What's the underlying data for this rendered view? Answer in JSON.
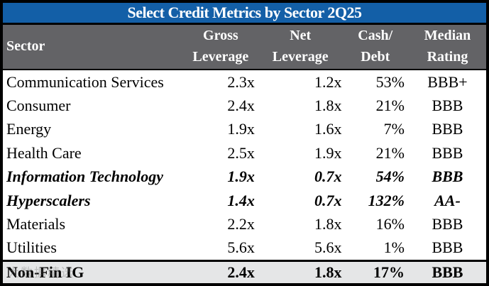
{
  "title": "Select Credit Metrics by Sector 2Q25",
  "columns": {
    "sector": "Sector",
    "gross": [
      "Gross",
      "Leverage"
    ],
    "net": [
      "Net",
      "Leverage"
    ],
    "cash": [
      "Cash/",
      "Debt"
    ],
    "rating": [
      "Median",
      "Rating"
    ]
  },
  "rows": [
    {
      "sector": "Communication Services",
      "gross": "2.3x",
      "net": "1.2x",
      "cash": "53%",
      "rating": "BBB+",
      "emphasis": false
    },
    {
      "sector": "Consumer",
      "gross": "2.4x",
      "net": "1.8x",
      "cash": "21%",
      "rating": "BBB",
      "emphasis": false
    },
    {
      "sector": "Energy",
      "gross": "1.9x",
      "net": "1.6x",
      "cash": "7%",
      "rating": "BBB",
      "emphasis": false
    },
    {
      "sector": "Health Care",
      "gross": "2.5x",
      "net": "1.9x",
      "cash": "21%",
      "rating": "BBB",
      "emphasis": false
    },
    {
      "sector": "Information Technology",
      "gross": "1.9x",
      "net": "0.7x",
      "cash": "54%",
      "rating": "BBB",
      "emphasis": true
    },
    {
      "sector": "Hyperscalers",
      "gross": "1.4x",
      "net": "0.7x",
      "cash": "132%",
      "rating": "AA-",
      "emphasis": true
    },
    {
      "sector": "Materials",
      "gross": "2.2x",
      "net": "1.8x",
      "cash": "16%",
      "rating": "BBB",
      "emphasis": false
    },
    {
      "sector": "Utilities",
      "gross": "5.6x",
      "net": "5.6x",
      "cash": "1%",
      "rating": "BBB",
      "emphasis": false
    }
  ],
  "total_row": {
    "sector": "Non-Fin IG",
    "gross": "2.4x",
    "net": "1.8x",
    "cash": "17%",
    "rating": "BBB"
  },
  "watermark_text_approx": "大数据精选",
  "colors": {
    "title_bg": "#135FA7",
    "header_bg": "#636366",
    "total_row_bg": "#E5E6E7",
    "border": "#000000",
    "header_text": "#FFFFFF",
    "body_text": "#000000"
  }
}
